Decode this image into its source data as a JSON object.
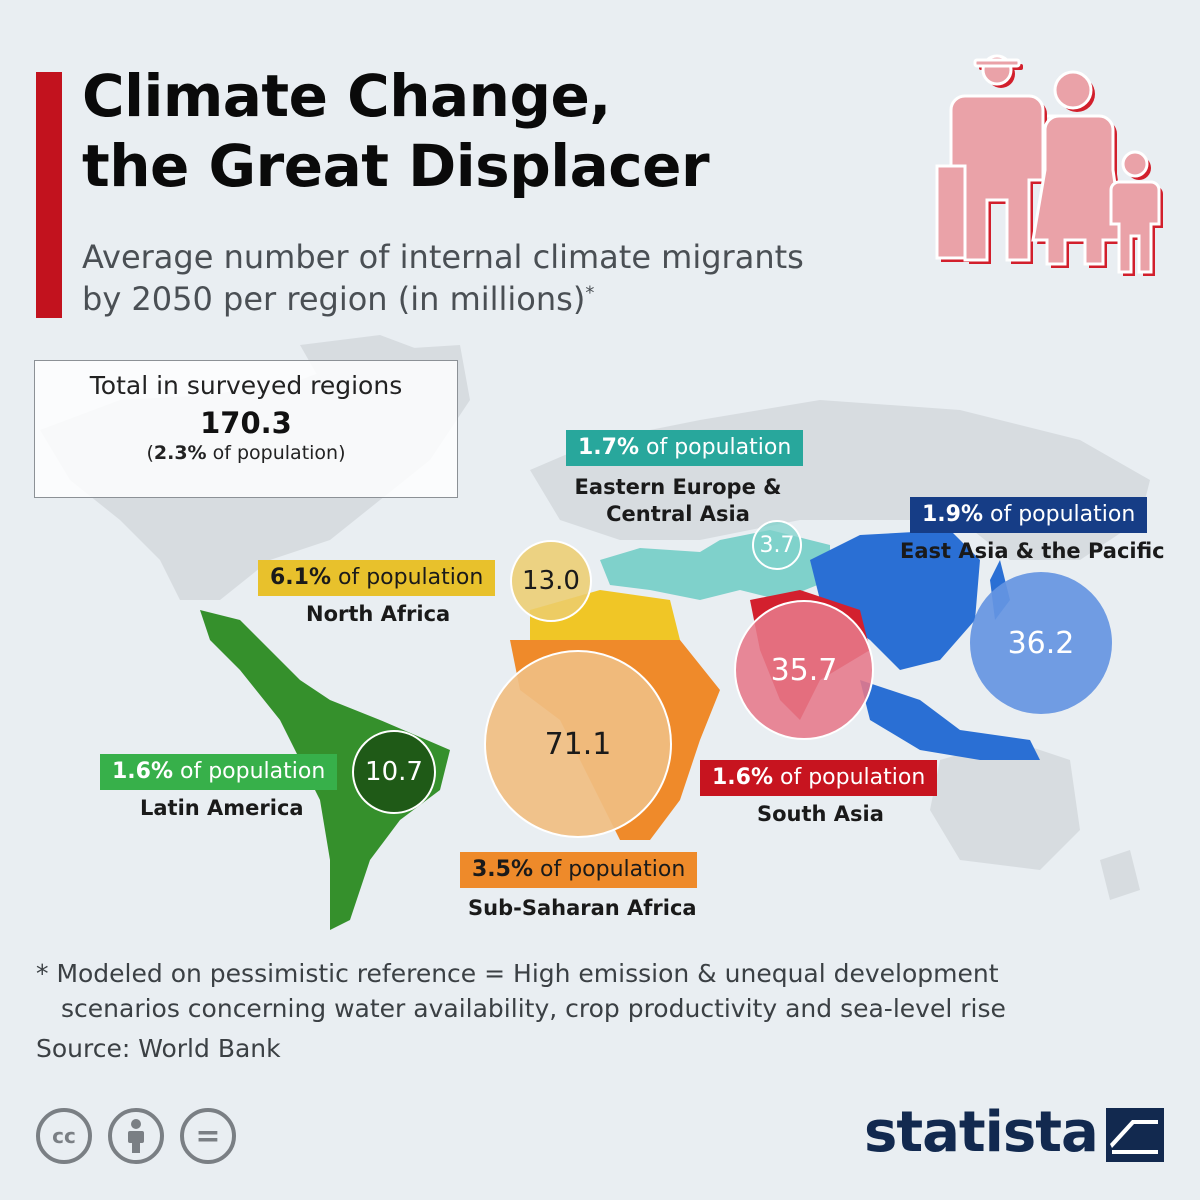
{
  "header": {
    "title_line1": "Climate Change,",
    "title_line2": "the Great Displacer",
    "subtitle_line1": "Average number of internal climate migrants",
    "subtitle_line2": "by 2050 per region (in millions)",
    "subtitle_marker": "*",
    "accent_color": "#c2121e"
  },
  "total": {
    "label": "Total in surveyed regions",
    "value": "170.3",
    "pct": "2.3%",
    "pct_suffix": "of population",
    "paren_open": "(",
    "paren_close": ")"
  },
  "regions": [
    {
      "name": "Eastern Europe & Central Asia",
      "name_line1": "Eastern Europe &",
      "name_line2": "Central Asia",
      "value": "3.7",
      "pct": "1.7%",
      "pct_suffix": "of population",
      "color": "#28a79c"
    },
    {
      "name": "East Asia & the Pacific",
      "value": "36.2",
      "pct": "1.9%",
      "pct_suffix": "of population",
      "color": "#163d86"
    },
    {
      "name": "North Africa",
      "value": "13.0",
      "pct": "6.1%",
      "pct_suffix": "of population",
      "color": "#e8c12c"
    },
    {
      "name": "Sub-Saharan Africa",
      "value": "71.1",
      "pct": "3.5%",
      "pct_suffix": "of population",
      "color": "#ee8a2a"
    },
    {
      "name": "South Asia",
      "value": "35.7",
      "pct": "1.6%",
      "pct_suffix": "of population",
      "color": "#c7141f"
    },
    {
      "name": "Latin America",
      "value": "10.7",
      "pct": "1.6%",
      "pct_suffix": "of population",
      "color": "#37b04a"
    }
  ],
  "footnote": {
    "line1": "* Modeled on pessimistic reference = High emission & unequal development",
    "line2": "scenarios concerning water availability, crop productivity and sea-level rise"
  },
  "source": "Source: World Bank",
  "license_icons": [
    "cc-icon",
    "attribution-icon",
    "no-derivatives-icon"
  ],
  "license_glyphs": {
    "cc": "cc",
    "equals": "="
  },
  "logo": {
    "text": "statista",
    "color": "#12294f"
  }
}
